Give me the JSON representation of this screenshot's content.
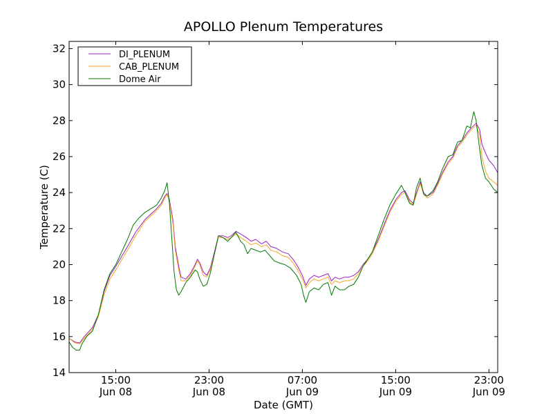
{
  "chart_data": {
    "type": "line",
    "title": "APOLLO Plenum Temperatures",
    "xlabel": "Date (GMT)",
    "ylabel": "Temperature (C)",
    "x_unit": "hours since Jun 08 11:00 GMT",
    "xlim": [
      0,
      36.75
    ],
    "ylim": [
      14,
      32.4
    ],
    "yticks": [
      14,
      16,
      18,
      20,
      22,
      24,
      26,
      28,
      30,
      32
    ],
    "xticks": [
      {
        "x": 4,
        "time": "15:00",
        "date": "Jun 08"
      },
      {
        "x": 12,
        "time": "23:00",
        "date": "Jun 08"
      },
      {
        "x": 20,
        "time": "07:00",
        "date": "Jun 09"
      },
      {
        "x": 28,
        "time": "15:00",
        "date": "Jun 09"
      },
      {
        "x": 36,
        "time": "23:00",
        "date": "Jun 09"
      }
    ],
    "grid": false,
    "legend_position": "top-left",
    "series": [
      {
        "name": "DI_PLENUM",
        "color": "#9a1fbf",
        "points": [
          [
            0,
            15.9
          ],
          [
            0.5,
            15.7
          ],
          [
            0.9,
            15.65
          ],
          [
            1.3,
            16.0
          ],
          [
            2.0,
            16.5
          ],
          [
            2.5,
            17.2
          ],
          [
            3.0,
            18.5
          ],
          [
            3.5,
            19.4
          ],
          [
            4.0,
            19.9
          ],
          [
            5.0,
            21.0
          ],
          [
            5.7,
            21.8
          ],
          [
            6.5,
            22.5
          ],
          [
            7.5,
            23.1
          ],
          [
            7.9,
            23.4
          ],
          [
            8.2,
            23.8
          ],
          [
            8.4,
            23.95
          ],
          [
            8.6,
            23.6
          ],
          [
            8.9,
            22.5
          ],
          [
            9.1,
            21.0
          ],
          [
            9.4,
            19.9
          ],
          [
            9.6,
            19.3
          ],
          [
            10.0,
            19.2
          ],
          [
            10.4,
            19.5
          ],
          [
            10.8,
            20.0
          ],
          [
            11.0,
            20.3
          ],
          [
            11.2,
            20.1
          ],
          [
            11.5,
            19.6
          ],
          [
            11.8,
            19.4
          ],
          [
            12.1,
            19.8
          ],
          [
            12.5,
            20.8
          ],
          [
            12.8,
            21.6
          ],
          [
            13.2,
            21.6
          ],
          [
            13.6,
            21.5
          ],
          [
            13.9,
            21.6
          ],
          [
            14.3,
            21.85
          ],
          [
            14.7,
            21.7
          ],
          [
            15.2,
            21.5
          ],
          [
            15.6,
            21.3
          ],
          [
            16.0,
            21.4
          ],
          [
            16.5,
            21.15
          ],
          [
            16.9,
            21.3
          ],
          [
            17.3,
            21.0
          ],
          [
            17.8,
            20.9
          ],
          [
            18.3,
            20.7
          ],
          [
            18.8,
            20.6
          ],
          [
            19.2,
            20.3
          ],
          [
            19.6,
            19.9
          ],
          [
            20.0,
            19.4
          ],
          [
            20.3,
            18.85
          ],
          [
            20.6,
            19.2
          ],
          [
            21.0,
            19.4
          ],
          [
            21.4,
            19.3
          ],
          [
            21.8,
            19.4
          ],
          [
            22.2,
            19.5
          ],
          [
            22.5,
            19.1
          ],
          [
            22.8,
            19.3
          ],
          [
            23.2,
            19.2
          ],
          [
            23.6,
            19.3
          ],
          [
            24.0,
            19.3
          ],
          [
            24.4,
            19.4
          ],
          [
            24.8,
            19.6
          ],
          [
            25.2,
            20.0
          ],
          [
            25.6,
            20.3
          ],
          [
            26.0,
            20.7
          ],
          [
            26.5,
            21.4
          ],
          [
            27.0,
            22.2
          ],
          [
            27.5,
            23.0
          ],
          [
            28.0,
            23.6
          ],
          [
            28.5,
            24.0
          ],
          [
            28.8,
            24.1
          ],
          [
            29.2,
            23.6
          ],
          [
            29.5,
            23.4
          ],
          [
            29.8,
            24.0
          ],
          [
            30.1,
            24.6
          ],
          [
            30.4,
            24.0
          ],
          [
            30.7,
            23.8
          ],
          [
            31.2,
            24.0
          ],
          [
            31.6,
            24.5
          ],
          [
            32.0,
            25.1
          ],
          [
            32.5,
            25.7
          ],
          [
            32.9,
            26.0
          ],
          [
            33.3,
            26.6
          ],
          [
            33.7,
            26.9
          ],
          [
            34.1,
            27.3
          ],
          [
            34.5,
            27.6
          ],
          [
            34.9,
            27.85
          ],
          [
            35.2,
            27.5
          ],
          [
            35.4,
            26.7
          ],
          [
            35.7,
            26.2
          ],
          [
            36.0,
            25.8
          ],
          [
            36.4,
            25.5
          ],
          [
            36.75,
            25.1
          ]
        ]
      },
      {
        "name": "CAB_PLENUM",
        "color": "#f5a623",
        "points": [
          [
            0,
            15.9
          ],
          [
            0.5,
            15.65
          ],
          [
            0.9,
            15.6
          ],
          [
            1.3,
            15.9
          ],
          [
            2.0,
            16.4
          ],
          [
            2.5,
            17.1
          ],
          [
            3.0,
            18.3
          ],
          [
            3.5,
            19.2
          ],
          [
            4.0,
            19.7
          ],
          [
            5.0,
            20.8
          ],
          [
            5.7,
            21.6
          ],
          [
            6.5,
            22.4
          ],
          [
            7.5,
            23.0
          ],
          [
            7.9,
            23.3
          ],
          [
            8.2,
            23.7
          ],
          [
            8.4,
            23.9
          ],
          [
            8.6,
            23.5
          ],
          [
            8.9,
            22.3
          ],
          [
            9.1,
            20.8
          ],
          [
            9.4,
            19.7
          ],
          [
            9.6,
            19.1
          ],
          [
            10.0,
            19.1
          ],
          [
            10.4,
            19.4
          ],
          [
            10.8,
            19.9
          ],
          [
            11.0,
            20.2
          ],
          [
            11.2,
            20.0
          ],
          [
            11.5,
            19.4
          ],
          [
            11.8,
            19.3
          ],
          [
            12.1,
            19.7
          ],
          [
            12.5,
            20.7
          ],
          [
            12.8,
            21.5
          ],
          [
            13.2,
            21.5
          ],
          [
            13.6,
            21.4
          ],
          [
            13.9,
            21.5
          ],
          [
            14.3,
            21.7
          ],
          [
            14.7,
            21.5
          ],
          [
            15.2,
            21.3
          ],
          [
            15.6,
            21.1
          ],
          [
            16.0,
            21.2
          ],
          [
            16.5,
            21.0
          ],
          [
            16.9,
            21.1
          ],
          [
            17.3,
            20.8
          ],
          [
            17.8,
            20.7
          ],
          [
            18.3,
            20.5
          ],
          [
            18.8,
            20.4
          ],
          [
            19.2,
            20.1
          ],
          [
            19.6,
            19.7
          ],
          [
            20.0,
            19.2
          ],
          [
            20.3,
            18.7
          ],
          [
            20.6,
            19.0
          ],
          [
            21.0,
            19.2
          ],
          [
            21.4,
            19.1
          ],
          [
            21.8,
            19.2
          ],
          [
            22.2,
            19.3
          ],
          [
            22.5,
            18.9
          ],
          [
            22.8,
            19.1
          ],
          [
            23.2,
            19.0
          ],
          [
            23.6,
            19.1
          ],
          [
            24.0,
            19.1
          ],
          [
            24.4,
            19.2
          ],
          [
            24.8,
            19.5
          ],
          [
            25.2,
            19.9
          ],
          [
            25.6,
            20.2
          ],
          [
            26.0,
            20.6
          ],
          [
            26.5,
            21.3
          ],
          [
            27.0,
            22.1
          ],
          [
            27.5,
            22.9
          ],
          [
            28.0,
            23.5
          ],
          [
            28.5,
            23.9
          ],
          [
            28.8,
            24.0
          ],
          [
            29.2,
            23.5
          ],
          [
            29.5,
            23.3
          ],
          [
            29.8,
            23.9
          ],
          [
            30.1,
            24.5
          ],
          [
            30.4,
            23.9
          ],
          [
            30.7,
            23.7
          ],
          [
            31.2,
            23.9
          ],
          [
            31.6,
            24.4
          ],
          [
            32.0,
            25.0
          ],
          [
            32.5,
            25.6
          ],
          [
            32.9,
            25.9
          ],
          [
            33.3,
            26.5
          ],
          [
            33.7,
            26.8
          ],
          [
            34.1,
            27.2
          ],
          [
            34.5,
            27.5
          ],
          [
            34.9,
            27.75
          ],
          [
            35.2,
            27.2
          ],
          [
            35.4,
            26.0
          ],
          [
            35.7,
            25.2
          ],
          [
            36.0,
            24.8
          ],
          [
            36.4,
            24.6
          ],
          [
            36.75,
            24.4
          ]
        ]
      },
      {
        "name": "Dome Air",
        "color": "#007700",
        "points": [
          [
            0,
            15.7
          ],
          [
            0.3,
            15.4
          ],
          [
            0.6,
            15.25
          ],
          [
            0.9,
            15.25
          ],
          [
            1.1,
            15.6
          ],
          [
            1.5,
            16.0
          ],
          [
            2.0,
            16.3
          ],
          [
            2.5,
            17.2
          ],
          [
            3.0,
            18.6
          ],
          [
            3.5,
            19.5
          ],
          [
            4.0,
            20.0
          ],
          [
            5.0,
            21.4
          ],
          [
            5.5,
            22.2
          ],
          [
            6.0,
            22.6
          ],
          [
            6.5,
            22.9
          ],
          [
            7.0,
            23.1
          ],
          [
            7.5,
            23.3
          ],
          [
            7.9,
            23.7
          ],
          [
            8.2,
            24.1
          ],
          [
            8.4,
            24.55
          ],
          [
            8.6,
            23.4
          ],
          [
            8.8,
            21.5
          ],
          [
            9.0,
            19.6
          ],
          [
            9.2,
            18.6
          ],
          [
            9.4,
            18.3
          ],
          [
            9.6,
            18.5
          ],
          [
            10.0,
            19.0
          ],
          [
            10.4,
            19.3
          ],
          [
            10.8,
            19.7
          ],
          [
            11.0,
            19.6
          ],
          [
            11.2,
            19.2
          ],
          [
            11.5,
            18.8
          ],
          [
            11.8,
            18.9
          ],
          [
            12.1,
            19.5
          ],
          [
            12.5,
            20.7
          ],
          [
            12.8,
            21.6
          ],
          [
            13.2,
            21.5
          ],
          [
            13.6,
            21.3
          ],
          [
            13.9,
            21.5
          ],
          [
            14.3,
            21.8
          ],
          [
            14.7,
            21.3
          ],
          [
            15.0,
            21.1
          ],
          [
            15.3,
            20.6
          ],
          [
            15.6,
            20.9
          ],
          [
            16.0,
            20.8
          ],
          [
            16.4,
            20.7
          ],
          [
            16.8,
            20.8
          ],
          [
            17.2,
            20.5
          ],
          [
            17.6,
            20.2
          ],
          [
            18.0,
            20.1
          ],
          [
            18.5,
            20.0
          ],
          [
            19.0,
            19.8
          ],
          [
            19.5,
            19.4
          ],
          [
            19.9,
            18.9
          ],
          [
            20.1,
            18.3
          ],
          [
            20.3,
            17.9
          ],
          [
            20.6,
            18.5
          ],
          [
            21.0,
            18.7
          ],
          [
            21.4,
            18.6
          ],
          [
            21.8,
            18.9
          ],
          [
            22.2,
            19.0
          ],
          [
            22.5,
            18.3
          ],
          [
            22.8,
            18.8
          ],
          [
            23.2,
            18.6
          ],
          [
            23.6,
            18.6
          ],
          [
            24.0,
            18.8
          ],
          [
            24.4,
            18.9
          ],
          [
            24.8,
            19.3
          ],
          [
            25.2,
            19.9
          ],
          [
            25.6,
            20.3
          ],
          [
            26.0,
            20.7
          ],
          [
            26.5,
            21.6
          ],
          [
            27.0,
            22.5
          ],
          [
            27.5,
            23.3
          ],
          [
            28.0,
            23.9
          ],
          [
            28.5,
            24.4
          ],
          [
            28.8,
            24.0
          ],
          [
            29.2,
            23.4
          ],
          [
            29.5,
            23.3
          ],
          [
            29.8,
            24.3
          ],
          [
            30.1,
            24.8
          ],
          [
            30.4,
            23.9
          ],
          [
            30.7,
            23.8
          ],
          [
            31.2,
            24.1
          ],
          [
            31.6,
            24.6
          ],
          [
            32.0,
            25.3
          ],
          [
            32.5,
            26.0
          ],
          [
            32.9,
            26.1
          ],
          [
            33.3,
            26.8
          ],
          [
            33.7,
            26.9
          ],
          [
            34.1,
            27.7
          ],
          [
            34.4,
            27.6
          ],
          [
            34.7,
            28.5
          ],
          [
            34.9,
            28.0
          ],
          [
            35.2,
            26.4
          ],
          [
            35.4,
            25.5
          ],
          [
            35.7,
            24.8
          ],
          [
            36.0,
            24.6
          ],
          [
            36.4,
            24.2
          ],
          [
            36.75,
            24.0
          ]
        ]
      }
    ]
  }
}
